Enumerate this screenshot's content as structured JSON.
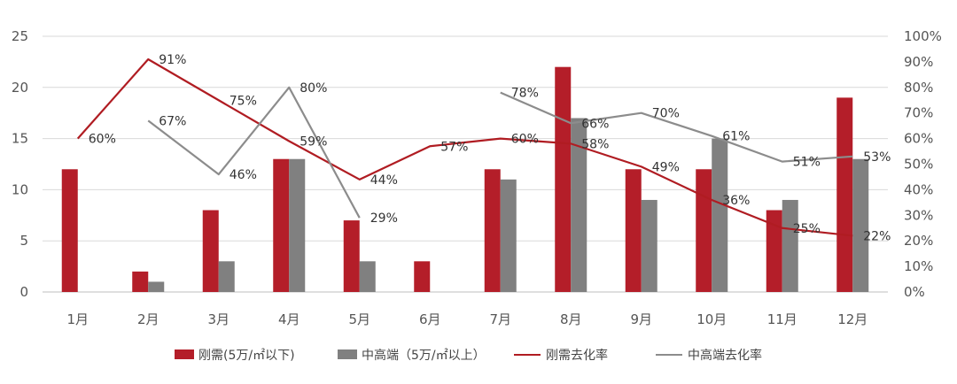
{
  "colors": {
    "rigid_bar": "#b41e29",
    "mid_bar": "#808080",
    "rigid_line": "#b01c22",
    "mid_line": "#8c8c8c",
    "grid": "#d9d9d9",
    "axis": "#bfbfbf"
  },
  "chart_data": {
    "type": "bar",
    "title": "",
    "xlabel": "",
    "ylabel": "",
    "categories": [
      "1月",
      "2月",
      "3月",
      "4月",
      "5月",
      "6月",
      "7月",
      "8月",
      "9月",
      "10月",
      "11月",
      "12月"
    ],
    "ylim": [
      0,
      25
    ],
    "y_ticks": [
      "0",
      "5",
      "10",
      "15",
      "20",
      "25"
    ],
    "y2lim": [
      0,
      100
    ],
    "y2_ticks": [
      "0%",
      "10%",
      "20%",
      "30%",
      "40%",
      "50%",
      "60%",
      "70%",
      "80%",
      "90%",
      "100%"
    ],
    "grid": true,
    "legend_position": "bottom",
    "series": [
      {
        "name": "刚需(5万/㎡以下)",
        "type": "bar",
        "axis": "left",
        "values": [
          12,
          2,
          8,
          13,
          7,
          3,
          12,
          22,
          12,
          12,
          8,
          19
        ]
      },
      {
        "name": "中高端（5万/㎡以上）",
        "type": "bar",
        "axis": "left",
        "values": [
          0,
          1,
          3,
          13,
          3,
          0,
          11,
          17,
          9,
          15,
          9,
          13
        ]
      },
      {
        "name": "刚需去化率",
        "type": "line",
        "axis": "right",
        "values": [
          60,
          91,
          75,
          59,
          44,
          57,
          60,
          58,
          49,
          36,
          25,
          22
        ],
        "labels": [
          "60%",
          "91%",
          "75%",
          "59%",
          "44%",
          "57%",
          "60%",
          "58%",
          "49%",
          "36%",
          "25%",
          "22%"
        ]
      },
      {
        "name": "中高端去化率",
        "type": "line",
        "axis": "right",
        "values": [
          null,
          67,
          46,
          80,
          29,
          null,
          78,
          66,
          70,
          61,
          51,
          53
        ],
        "labels": [
          null,
          "67%",
          "46%",
          "80%",
          "29%",
          null,
          "78%",
          "66%",
          "70%",
          "61%",
          "51%",
          "53%"
        ]
      }
    ]
  }
}
